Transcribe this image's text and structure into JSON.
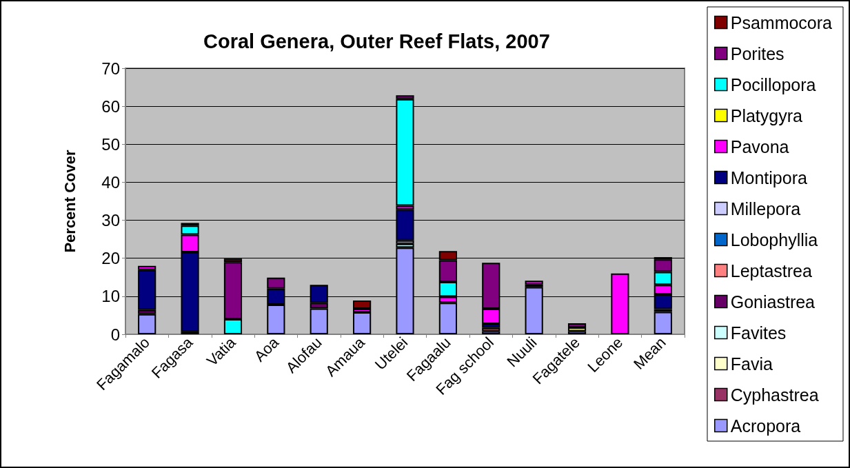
{
  "chart_data": {
    "type": "bar",
    "stacked": true,
    "title": "Coral Genera, Outer Reef Flats, 2007",
    "ylabel": "Percent Cover",
    "categories": [
      "Fagamalo",
      "Fagasa",
      "Vatia",
      "Aoa",
      "Alofau",
      "Amaua",
      "Utelei",
      "Fagaalu",
      "Fag school",
      "Nuuli",
      "Fagatele",
      "Leone",
      "Mean"
    ],
    "series": [
      {
        "name": "Acropora",
        "color": "#9999ff",
        "values": [
          5.3,
          0.7,
          null,
          7.8,
          6.8,
          5.8,
          22.8,
          8.3,
          0.8,
          12.4,
          0.8,
          null,
          5.9
        ]
      },
      {
        "name": "Cyphastrea",
        "color": "#993366",
        "values": [
          null,
          null,
          null,
          null,
          null,
          null,
          null,
          null,
          null,
          null,
          null,
          null,
          null
        ]
      },
      {
        "name": "Favia",
        "color": "#ffffcc",
        "values": [
          null,
          null,
          null,
          null,
          null,
          null,
          null,
          null,
          null,
          null,
          null,
          null,
          null
        ]
      },
      {
        "name": "Favites",
        "color": "#ccffff",
        "values": [
          null,
          null,
          null,
          null,
          null,
          null,
          1.0,
          null,
          null,
          null,
          null,
          null,
          null
        ]
      },
      {
        "name": "Goniastrea",
        "color": "#660066",
        "values": [
          1.1,
          null,
          null,
          null,
          1.5,
          null,
          null,
          null,
          null,
          0.7,
          null,
          null,
          0.7
        ]
      },
      {
        "name": "Leptastrea",
        "color": "#ff8080",
        "values": [
          null,
          null,
          null,
          null,
          null,
          null,
          null,
          null,
          0.9,
          null,
          null,
          null,
          null
        ]
      },
      {
        "name": "Lobophyllia",
        "color": "#0066cc",
        "values": [
          null,
          null,
          null,
          null,
          null,
          null,
          null,
          null,
          null,
          null,
          null,
          null,
          null
        ]
      },
      {
        "name": "Millepora",
        "color": "#ccccff",
        "values": [
          null,
          null,
          null,
          null,
          null,
          null,
          0.9,
          null,
          null,
          null,
          null,
          null,
          null
        ]
      },
      {
        "name": "Montipora",
        "color": "#000080",
        "values": [
          10.5,
          20.9,
          null,
          4.2,
          4.7,
          null,
          8.1,
          null,
          1.0,
          null,
          null,
          null,
          3.9
        ]
      },
      {
        "name": "Pavona",
        "color": "#ff00ff",
        "values": [
          1.1,
          4.6,
          null,
          null,
          null,
          0.9,
          1.0,
          1.6,
          4.0,
          1.0,
          null,
          16.0,
          2.5
        ]
      },
      {
        "name": "Platygyra",
        "color": "#ffff00",
        "values": [
          null,
          null,
          null,
          null,
          null,
          null,
          null,
          null,
          null,
          null,
          1.0,
          null,
          null
        ]
      },
      {
        "name": "Pocillopora",
        "color": "#00ffff",
        "values": [
          null,
          2.4,
          4.0,
          null,
          null,
          null,
          28.1,
          3.9,
          null,
          null,
          null,
          null,
          3.4
        ]
      },
      {
        "name": "Porites",
        "color": "#800080",
        "values": [
          null,
          0.7,
          15.0,
          2.9,
          null,
          null,
          1.0,
          5.7,
          12.1,
          null,
          1.1,
          null,
          3.3
        ]
      },
      {
        "name": "Psammocora",
        "color": "#800000",
        "values": [
          null,
          null,
          0.9,
          null,
          null,
          2.2,
          null,
          2.4,
          null,
          null,
          null,
          null,
          0.6
        ]
      }
    ],
    "ylim": [
      0,
      70
    ],
    "yticks": [
      0,
      10,
      20,
      30,
      40,
      50,
      60,
      70
    ],
    "grid": "y",
    "legend": "right"
  }
}
